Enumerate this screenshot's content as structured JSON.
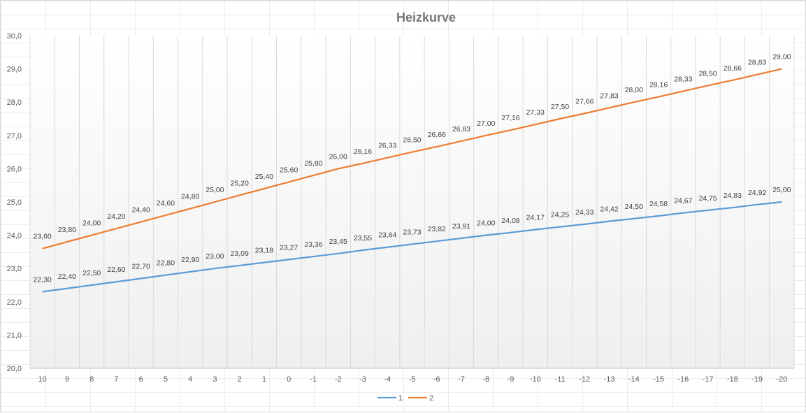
{
  "chart_data": {
    "type": "line",
    "title": "Heizkurve",
    "xlabel": "",
    "ylabel": "",
    "ylim": [
      20.0,
      30.0
    ],
    "ytick_step": 1.0,
    "yticks": [
      "20,0",
      "21,0",
      "22,0",
      "23,0",
      "24,0",
      "25,0",
      "26,0",
      "27,0",
      "28,0",
      "29,0",
      "30,0"
    ],
    "categories": [
      "10",
      "9",
      "8",
      "7",
      "6",
      "5",
      "4",
      "3",
      "2",
      "1",
      "0",
      "-1",
      "-2",
      "-3",
      "-4",
      "-5",
      "-6",
      "-7",
      "-8",
      "-9",
      "-10",
      "-11",
      "-12",
      "-13",
      "-14",
      "-15",
      "-16",
      "-17",
      "-18",
      "-19",
      "-20"
    ],
    "grid": "vertical",
    "legend_position": "bottom",
    "series": [
      {
        "name": "1",
        "color": "#5b9bd5",
        "values": [
          22.3,
          22.4,
          22.5,
          22.6,
          22.7,
          22.8,
          22.9,
          23.0,
          23.09,
          23.18,
          23.27,
          23.36,
          23.45,
          23.55,
          23.64,
          23.73,
          23.82,
          23.91,
          24.0,
          24.08,
          24.17,
          24.25,
          24.33,
          24.42,
          24.5,
          24.58,
          24.67,
          24.75,
          24.83,
          24.92,
          25.0
        ],
        "labels": [
          "22,30",
          "22,40",
          "22,50",
          "22,60",
          "22,70",
          "22,80",
          "22,90",
          "23,00",
          "23,09",
          "23,18",
          "23,27",
          "23,36",
          "23,45",
          "23,55",
          "23,64",
          "23,73",
          "23,82",
          "23,91",
          "24,00",
          "24,08",
          "24,17",
          "24,25",
          "24,33",
          "24,42",
          "24,50",
          "24,58",
          "24,67",
          "24,75",
          "24,83",
          "24,92",
          "25,00"
        ]
      },
      {
        "name": "2",
        "color": "#ed7d31",
        "values": [
          23.6,
          23.8,
          24.0,
          24.2,
          24.4,
          24.6,
          24.8,
          25.0,
          25.2,
          25.4,
          25.6,
          25.8,
          26.0,
          26.16,
          26.33,
          26.5,
          26.66,
          26.83,
          27.0,
          27.16,
          27.33,
          27.5,
          27.66,
          27.83,
          28.0,
          28.16,
          28.33,
          28.5,
          28.66,
          28.83,
          29.0
        ],
        "labels": [
          "23,60",
          "23,80",
          "24,00",
          "24,20",
          "24,40",
          "24,60",
          "24,80",
          "25,00",
          "25,20",
          "25,40",
          "25,60",
          "25,80",
          "26,00",
          "26,16",
          "26,33",
          "26,50",
          "26,66",
          "26,83",
          "27,00",
          "27,16",
          "27,33",
          "27,50",
          "27,66",
          "27,83",
          "28,00",
          "28,16",
          "28,33",
          "28,50",
          "28,66",
          "28,83",
          "29,00"
        ]
      }
    ]
  }
}
